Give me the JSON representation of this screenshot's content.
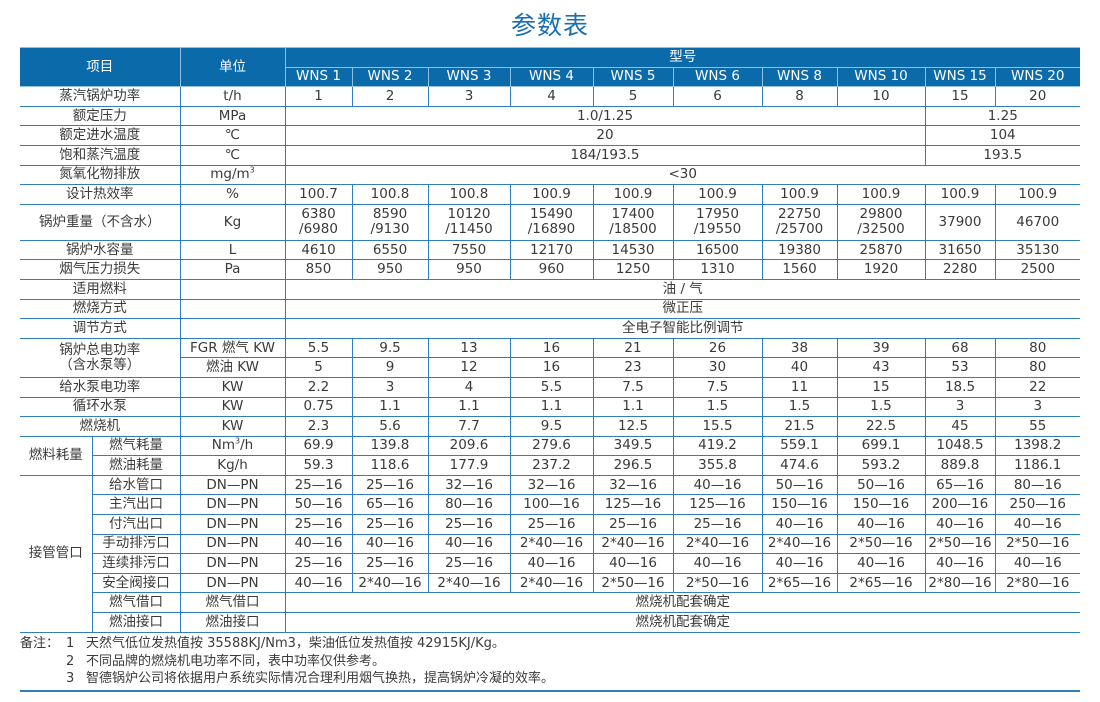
{
  "title": "参数表",
  "header": {
    "item": "项目",
    "unit": "单位",
    "model_group": "型号",
    "models": [
      "WNS 1",
      "WNS 2",
      "WNS 3",
      "WNS 4",
      "WNS 5",
      "WNS 6",
      "WNS 8",
      "WNS 10",
      "WNS 15",
      "WNS 20"
    ]
  },
  "rows": [
    {
      "label": "蒸汽锅炉功率",
      "unit": "t/h",
      "values": [
        "1",
        "2",
        "3",
        "4",
        "5",
        "6",
        "8",
        "10",
        "15",
        "20"
      ]
    },
    {
      "label": "额定压力",
      "unit": "MPa",
      "merged": [
        {
          "v": "1.0/1.25",
          "models": 8
        },
        {
          "v": "1.25",
          "models": 2
        }
      ]
    },
    {
      "label": "额定进水温度",
      "unit": "℃",
      "merged": [
        {
          "v": "20",
          "models": 8
        },
        {
          "v": "104",
          "models": 2
        }
      ]
    },
    {
      "label": "饱和蒸汽温度",
      "unit": "℃",
      "merged": [
        {
          "v": "184/193.5",
          "models": 8
        },
        {
          "v": "193.5",
          "models": 2
        }
      ]
    },
    {
      "label": "氮氧化物排放",
      "unit": "mg/m",
      "unit_sup": "3",
      "merged": [
        {
          "v": "<30",
          "models": 10
        }
      ]
    },
    {
      "label": "设计热效率",
      "unit": "%",
      "values": [
        "100.7",
        "100.8",
        "100.8",
        "100.9",
        "100.9",
        "100.9",
        "100.9",
        "100.9",
        "100.9",
        "100.9"
      ]
    },
    {
      "label": "锅炉重量（不含水）",
      "unit": "Kg",
      "tall": true,
      "values": [
        "6380\n/6980",
        "8590\n/9130",
        "10120\n/11450",
        "15490\n/16890",
        "17400\n/18500",
        "17950\n/19550",
        "22750\n/25700",
        "29800\n/32500",
        "37900",
        "46700"
      ]
    },
    {
      "label": "锅炉水容量",
      "unit": "L",
      "values": [
        "4610",
        "6550",
        "7550",
        "12170",
        "14530",
        "16500",
        "19380",
        "25870",
        "31650",
        "35130"
      ]
    },
    {
      "label": "烟气压力损失",
      "unit": "Pa",
      "values": [
        "850",
        "950",
        "950",
        "960",
        "1250",
        "1310",
        "1560",
        "1920",
        "2280",
        "2500"
      ]
    },
    {
      "label": "适用燃料",
      "unit": "",
      "merged": [
        {
          "v": "油 / 气",
          "models": 10
        }
      ]
    },
    {
      "label": "燃烧方式",
      "unit": "",
      "merged": [
        {
          "v": "微正压",
          "models": 10
        }
      ]
    },
    {
      "label": "调节方式",
      "unit": "",
      "merged": [
        {
          "v": "全电子智能比例调节",
          "models": 10
        }
      ]
    },
    {
      "label": "锅炉总电功率\n（含水泵等）",
      "label_rows": 2,
      "unit": "FGR 燃气 KW",
      "values": [
        "5.5",
        "9.5",
        "13",
        "16",
        "21",
        "26",
        "38",
        "39",
        "68",
        "80"
      ]
    },
    {
      "unit": "燃油 KW",
      "values": [
        "5",
        "9",
        "12",
        "16",
        "23",
        "30",
        "40",
        "43",
        "53",
        "80"
      ]
    },
    {
      "label": "给水泵电功率",
      "unit": "KW",
      "values": [
        "2.2",
        "3",
        "4",
        "5.5",
        "7.5",
        "7.5",
        "11",
        "15",
        "18.5",
        "22"
      ]
    },
    {
      "label": "循环水泵",
      "unit": "KW",
      "values": [
        "0.75",
        "1.1",
        "1.1",
        "1.1",
        "1.1",
        "1.5",
        "1.5",
        "1.5",
        "3",
        "3"
      ]
    },
    {
      "label": "燃烧机",
      "unit": "KW",
      "values": [
        "2.3",
        "5.6",
        "7.7",
        "9.5",
        "12.5",
        "15.5",
        "21.5",
        "22.5",
        "45",
        "55"
      ]
    },
    {
      "group": "燃料耗量",
      "group_rows": 2,
      "sub": "燃气耗量",
      "unit": "Nm",
      "unit_sup": "3",
      "unit_tail": "/h",
      "values": [
        "69.9",
        "139.8",
        "209.6",
        "279.6",
        "349.5",
        "419.2",
        "559.1",
        "699.1",
        "1048.5",
        "1398.2"
      ]
    },
    {
      "sub": "燃油耗量",
      "unit": "Kg/h",
      "values": [
        "59.3",
        "118.6",
        "177.9",
        "237.2",
        "296.5",
        "355.8",
        "474.6",
        "593.2",
        "889.8",
        "1186.1"
      ]
    },
    {
      "group": "接管管口",
      "group_rows": 8,
      "sub": "给水管口",
      "unit": "DN—PN",
      "values": [
        "25—16",
        "25—16",
        "32—16",
        "32—16",
        "32—16",
        "40—16",
        "50—16",
        "50—16",
        "65—16",
        "80—16"
      ]
    },
    {
      "sub": "主汽出口",
      "unit": "DN—PN",
      "values": [
        "50—16",
        "65—16",
        "80—16",
        "100—16",
        "125—16",
        "125—16",
        "150—16",
        "150—16",
        "200—16",
        "250—16"
      ]
    },
    {
      "sub": "付汽出口",
      "unit": "DN—PN",
      "values": [
        "25—16",
        "25—16",
        "25—16",
        "25—16",
        "25—16",
        "25—16",
        "40—16",
        "40—16",
        "40—16",
        "40—16"
      ]
    },
    {
      "sub": "手动排污口",
      "unit": "DN—PN",
      "values": [
        "40—16",
        "40—16",
        "40—16",
        "2*40—16",
        "2*40—16",
        "2*40—16",
        "2*40—16",
        "2*50—16",
        "2*50—16",
        "2*50—16"
      ]
    },
    {
      "sub": "连续排污口",
      "unit": "DN—PN",
      "values": [
        "25—16",
        "25—16",
        "25—16",
        "40—16",
        "40—16",
        "40—16",
        "40—16",
        "40—16",
        "40—16",
        "40—16"
      ]
    },
    {
      "sub": "安全阀接口",
      "unit": "DN—PN",
      "values": [
        "40—16",
        "2*40—16",
        "2*40—16",
        "2*40—16",
        "2*50—16",
        "2*50—16",
        "2*65—16",
        "2*65—16",
        "2*80—16",
        "2*80—16"
      ]
    },
    {
      "sub": "燃气借口",
      "unit": "燃气借口",
      "merged": [
        {
          "v": "燃烧机配套确定",
          "models": 10
        }
      ]
    },
    {
      "sub": "燃油接口",
      "unit": "燃油接口",
      "merged": [
        {
          "v": "燃烧机配套确定",
          "models": 10
        }
      ]
    }
  ],
  "notes": {
    "prefix": "备注：",
    "items": [
      {
        "num": "1",
        "text": "天然气低位发热值按 35588KJ/Nm3，柴油低位发热值按 42915KJ/Kg。"
      },
      {
        "num": "2",
        "text": "不同品牌的燃烧机电功率不同，表中功率仅供参考。"
      },
      {
        "num": "3",
        "text": "智德锅炉公司将依据用户系统实际情况合理利用烟气换热，提高锅炉冷凝的效率。"
      }
    ]
  },
  "colors": {
    "accent": "#0b6aa9",
    "border": "#2f7fbf",
    "title": "#1a6fb0"
  }
}
